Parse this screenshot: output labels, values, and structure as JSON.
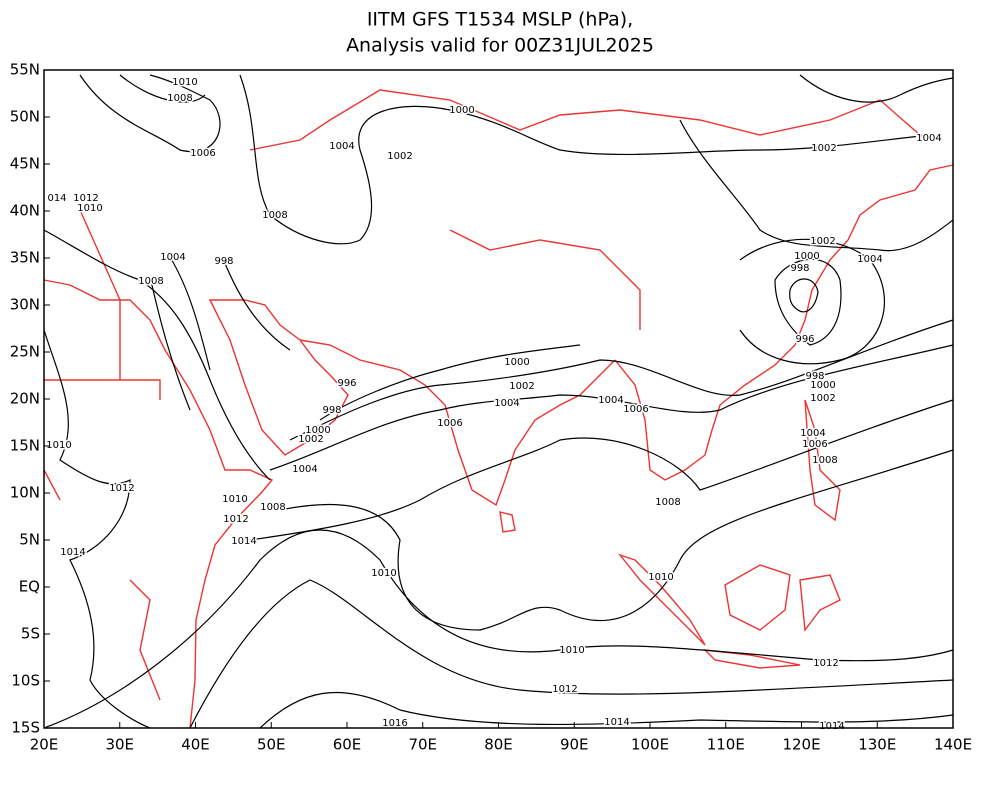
{
  "title": [
    "IITM GFS T1534 MSLP (hPa),",
    "Analysis valid for 00Z31JUL2025"
  ],
  "lon_labels": [
    "20E",
    "30E",
    "40E",
    "50E",
    "60E",
    "70E",
    "80E",
    "90E",
    "100E",
    "110E",
    "120E",
    "130E",
    "140E"
  ],
  "lat_labels": [
    "55N",
    "50N",
    "45N",
    "40N",
    "35N",
    "30N",
    "25N",
    "20N",
    "15N",
    "10N",
    "5N",
    "EQ",
    "5S",
    "10S",
    "15S"
  ],
  "contour_labels": [
    "1010",
    "1008",
    "1006",
    "1000",
    "1004",
    "1002",
    "1002",
    "1004",
    "014",
    "1012",
    "1010",
    "1008",
    "1004",
    "998",
    "1008",
    "1002",
    "1000",
    "998",
    "1004",
    "996",
    "1000",
    "996",
    "1002",
    "998",
    "1004",
    "1004",
    "1006",
    "998",
    "1000",
    "1002",
    "1006",
    "1000",
    "1002",
    "1004",
    "1006",
    "1008",
    "1010",
    "1004",
    "1012",
    "1010",
    "1008",
    "1008",
    "1012",
    "1014",
    "1014",
    "1010",
    "1010",
    "1010",
    "1012",
    "1012",
    "1016",
    "1014",
    "1014"
  ]
}
